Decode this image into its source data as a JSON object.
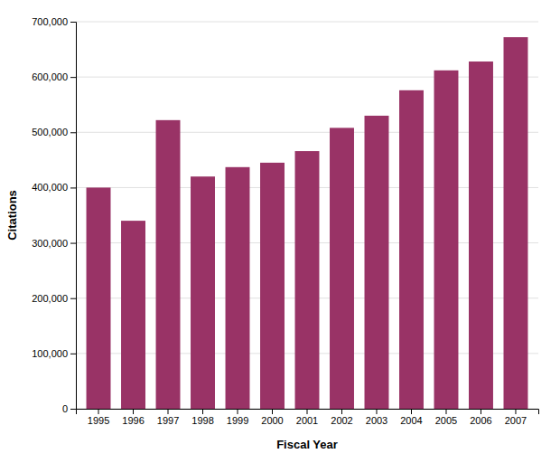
{
  "chart_data": {
    "type": "bar",
    "categories": [
      "1995",
      "1996",
      "1997",
      "1998",
      "1999",
      "2000",
      "2001",
      "2002",
      "2003",
      "2004",
      "2005",
      "2006",
      "2007"
    ],
    "values": [
      400000,
      340000,
      522000,
      420000,
      437000,
      445000,
      466000,
      508000,
      530000,
      576000,
      612000,
      628000,
      672000
    ],
    "color": "#993366",
    "xlabel": "Fiscal Year",
    "ylabel": "Citations",
    "ylim": [
      0,
      700000
    ],
    "yticks": [
      0,
      {
        "value": 100000,
        "label": "100,000"
      },
      {
        "value": 200000,
        "label": "200,000"
      },
      {
        "value": 300000,
        "label": "300,000"
      },
      {
        "value": 400000,
        "label": "400,000"
      },
      {
        "value": 500000,
        "label": "500,000"
      },
      {
        "value": 600000,
        "label": "600,000"
      },
      {
        "value": 700000,
        "label": "700,000"
      }
    ],
    "grid": true
  }
}
